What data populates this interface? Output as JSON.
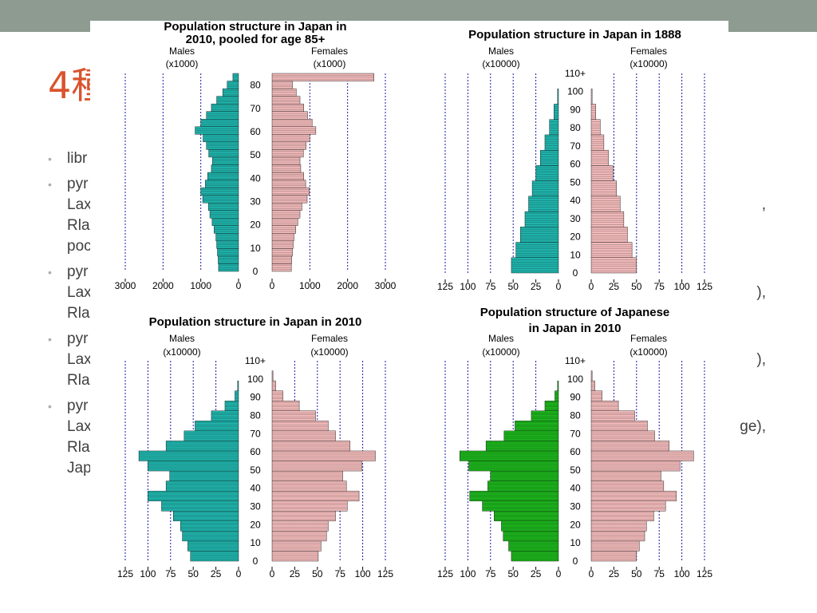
{
  "slide": {
    "title": "4種",
    "bullets": [
      {
        "lines": [
          "libr"
        ]
      },
      {
        "lines": [
          "pyr",
          "Lax",
          "Rla",
          "poc"
        ],
        "tail": ","
      },
      {
        "lines": [
          "pyr",
          "Lax",
          "Rla"
        ],
        "tail": "),"
      },
      {
        "lines": [
          "pyr",
          "Lax",
          "Rla"
        ],
        "tail": "),"
      },
      {
        "lines": [
          "pyr",
          "Lax",
          "Rla",
          "Jap"
        ],
        "tail": "ge),"
      }
    ]
  },
  "colors": {
    "topbar": "#8e9b91",
    "title": "#d9542e",
    "bullet_text": "#404040",
    "male_teal": "#20b2aa",
    "male_green": "#1db31d",
    "female_pink": "#f0b9b9",
    "grid": "#1a1aa8"
  },
  "chart_data": [
    {
      "type": "bar",
      "title": "Population structure in Japan in 2010, pooled for age 85+",
      "male_label": "Males\n(x1000)",
      "female_label": "Females\n(x1000)",
      "scale": 1,
      "xlim": [
        0,
        3000
      ],
      "x_ticks": [
        3000,
        2000,
        1000,
        0
      ],
      "x_ticks_right": [
        0,
        1000,
        2000,
        3000
      ],
      "y_ticks": [
        "0",
        "10",
        "20",
        "30",
        "40",
        "50",
        "60",
        "70",
        "80"
      ],
      "age_max": 85,
      "male_color": "teal",
      "male_values": [
        530,
        540,
        560,
        580,
        600,
        650,
        700,
        760,
        800,
        950,
        1000,
        880,
        820,
        720,
        690,
        790,
        850,
        940,
        1150,
        1000,
        850,
        720,
        580,
        420,
        300,
        150
      ],
      "female_values": [
        510,
        520,
        540,
        560,
        580,
        630,
        680,
        740,
        790,
        930,
        990,
        890,
        840,
        760,
        740,
        830,
        900,
        1000,
        1160,
        1060,
        940,
        840,
        740,
        640,
        540,
        2700
      ]
    },
    {
      "type": "bar",
      "title": "Population structure in Japan in 1888",
      "male_label": "Males\n(x10000)",
      "female_label": "Females\n(x10000)",
      "scale": 10000,
      "xlim": [
        0,
        125
      ],
      "x_ticks": [
        125,
        100,
        75,
        50,
        25,
        0
      ],
      "x_ticks_right": [
        0,
        25,
        50,
        75,
        100,
        125
      ],
      "y_ticks": [
        "0",
        "10",
        "20",
        "30",
        "40",
        "50",
        "60",
        "70",
        "80",
        "90",
        "100",
        "110+"
      ],
      "age_max": 110,
      "male_color": "teal",
      "male_values": [
        52,
        47,
        42,
        37,
        33,
        29,
        25,
        20,
        15,
        10,
        5,
        1,
        0
      ],
      "female_values": [
        50,
        45,
        40,
        36,
        32,
        28,
        24,
        19,
        14,
        10,
        5,
        1,
        0
      ]
    },
    {
      "type": "bar",
      "title": "Population structure in Japan in 2010",
      "male_label": "Males\n(x10000)",
      "female_label": "Females\n(x10000)",
      "scale": 10000,
      "xlim": [
        0,
        125
      ],
      "x_ticks": [
        125,
        100,
        75,
        50,
        25,
        0
      ],
      "x_ticks_right": [
        0,
        25,
        50,
        75,
        100,
        125
      ],
      "y_ticks": [
        "0",
        "10",
        "20",
        "30",
        "40",
        "50",
        "60",
        "70",
        "80",
        "90",
        "100",
        "110+"
      ],
      "age_max": 110,
      "male_color": "teal",
      "male_values": [
        53,
        56,
        62,
        64,
        72,
        85,
        100,
        80,
        76,
        100,
        110,
        80,
        60,
        48,
        30,
        15,
        4,
        1,
        0,
        0
      ],
      "female_values": [
        51,
        54,
        60,
        62,
        70,
        83,
        96,
        82,
        78,
        99,
        114,
        86,
        70,
        62,
        48,
        30,
        12,
        4,
        1,
        0
      ]
    },
    {
      "type": "bar",
      "title": "Population structure of Japanese in Japan in 2010",
      "male_label": "Males\n(x10000)",
      "female_label": "Females\n(x10000)",
      "scale": 10000,
      "xlim": [
        0,
        125
      ],
      "x_ticks": [
        125,
        100,
        75,
        50,
        25,
        0
      ],
      "x_ticks_right": [
        0,
        25,
        50,
        75,
        100,
        125
      ],
      "y_ticks": [
        "0",
        "10",
        "20",
        "30",
        "40",
        "50",
        "60",
        "70",
        "80",
        "90",
        "100",
        "110+"
      ],
      "age_max": 110,
      "male_color": "green",
      "male_values": [
        52,
        55,
        61,
        63,
        71,
        84,
        98,
        78,
        75,
        99,
        109,
        80,
        60,
        48,
        30,
        15,
        4,
        1,
        0,
        0
      ],
      "female_values": [
        50,
        53,
        59,
        61,
        69,
        82,
        94,
        80,
        77,
        98,
        113,
        86,
        70,
        62,
        48,
        30,
        12,
        4,
        1,
        0
      ]
    }
  ]
}
